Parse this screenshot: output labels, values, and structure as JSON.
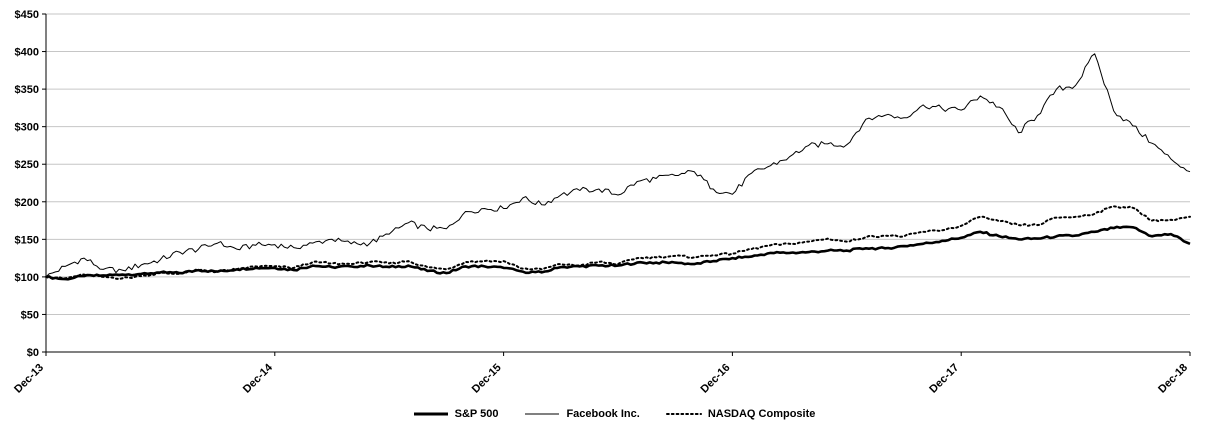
{
  "chart_data": {
    "type": "line",
    "title": "",
    "x_tick_labels": [
      "Dec-13",
      "Dec-14",
      "Dec-15",
      "Dec-16",
      "Dec-17",
      "Dec-18"
    ],
    "y_tick_labels": [
      "$0",
      "$50",
      "$100",
      "$150",
      "$200",
      "$250",
      "$300",
      "$350",
      "$400",
      "$450"
    ],
    "ylim": [
      0,
      450
    ],
    "y_step": 50,
    "x_months": 60,
    "grid": "horizontal-only",
    "legend_position": "bottom-center",
    "axis_color": "#000000",
    "grid_color": "#c6c6c6",
    "background_color": "#ffffff",
    "series": [
      {
        "name": "S&P 500",
        "style": "thick-solid",
        "color": "#000000",
        "values": [
          100,
          97,
          101,
          102,
          103,
          104,
          106,
          105,
          109,
          107,
          110,
          112,
          112,
          109,
          115,
          113,
          114,
          115,
          113,
          115,
          108,
          105,
          114,
          114,
          112,
          107,
          106,
          113,
          114,
          115,
          115,
          119,
          119,
          119,
          117,
          121,
          125,
          127,
          132,
          132,
          133,
          135,
          135,
          138,
          138,
          141,
          144,
          148,
          152,
          160,
          154,
          150,
          151,
          154,
          155,
          160,
          165,
          166,
          154,
          157,
          144
        ]
      },
      {
        "name": "Facebook Inc.",
        "style": "thin-solid",
        "color": "#000000",
        "values": [
          100,
          114,
          125,
          110,
          109,
          116,
          123,
          133,
          137,
          145,
          137,
          142,
          143,
          139,
          145,
          150,
          144,
          145,
          157,
          172,
          164,
          164,
          187,
          191,
          191,
          205,
          196,
          209,
          215,
          217,
          209,
          227,
          231,
          235,
          240,
          217,
          210,
          238,
          248,
          260,
          275,
          277,
          276,
          310,
          315,
          312,
          329,
          324,
          322,
          341,
          326,
          292,
          315,
          350,
          355,
          397,
          321,
          301,
          278,
          257,
          240
        ]
      },
      {
        "name": "NASDAQ Composite",
        "style": "dotted",
        "color": "#000000",
        "values": [
          100,
          98,
          103,
          100,
          98,
          101,
          105,
          104,
          109,
          107,
          110,
          114,
          114,
          112,
          120,
          118,
          117,
          120,
          118,
          121,
          113,
          110,
          120,
          121,
          121,
          111,
          110,
          117,
          115,
          120,
          117,
          125,
          126,
          128,
          126,
          129,
          131,
          137,
          142,
          144,
          147,
          151,
          147,
          153,
          155,
          154,
          160,
          162,
          168,
          180,
          174,
          169,
          169,
          179,
          180,
          184,
          194,
          192,
          175,
          176,
          180
        ]
      }
    ]
  }
}
